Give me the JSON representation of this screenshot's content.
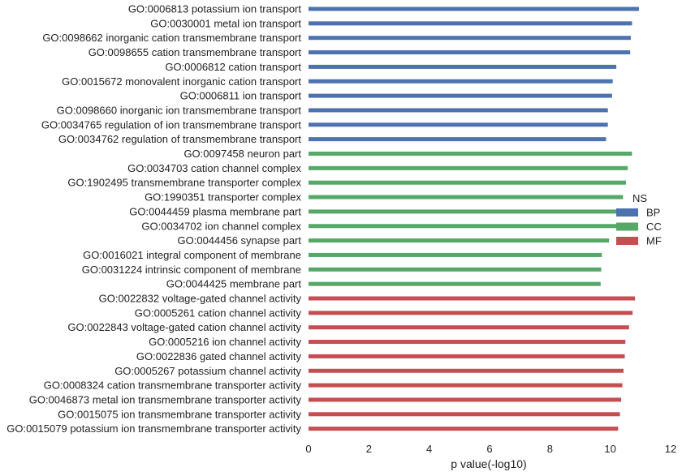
{
  "chart_data": {
    "type": "bar",
    "orientation": "horizontal",
    "xlabel": "p value(-log10)",
    "ylabel": "",
    "xlim": [
      0,
      12
    ],
    "xticks": [
      0,
      2,
      4,
      6,
      8,
      10,
      12
    ],
    "grid": false,
    "legend": {
      "title": "NS",
      "placement": "right",
      "entries": [
        {
          "name": "BP",
          "color": "#4c72b0"
        },
        {
          "name": "CC",
          "color": "#55a868"
        },
        {
          "name": "MF",
          "color": "#c44e52"
        }
      ]
    },
    "categories": [
      "GO:0006813 potassium ion transport",
      "GO:0030001 metal ion transport",
      "GO:0098662 inorganic cation transmembrane transport",
      "GO:0098655 cation transmembrane transport",
      "GO:0006812 cation transport",
      "GO:0015672 monovalent inorganic cation transport",
      "GO:0006811 ion transport",
      "GO:0098660 inorganic ion transmembrane transport",
      "GO:0034765 regulation of ion transmembrane transport",
      "GO:0034762 regulation of transmembrane transport",
      "GO:0097458 neuron part",
      "GO:0034703 cation channel complex",
      "GO:1902495 transmembrane transporter complex",
      "GO:1990351 transporter complex",
      "GO:0044459 plasma membrane part",
      "GO:0034702 ion channel complex",
      "GO:0044456 synapse part",
      "GO:0016021 integral component of membrane",
      "GO:0031224 intrinsic component of membrane",
      "GO:0044425 membrane part",
      "GO:0022832 voltage-gated channel activity",
      "GO:0005261 cation channel activity",
      "GO:0022843 voltage-gated cation channel activity",
      "GO:0005216 ion channel activity",
      "GO:0022836 gated channel activity",
      "GO:0005267 potassium channel activity",
      "GO:0008324 cation transmembrane transporter activity",
      "GO:0046873 metal ion transmembrane transporter activity",
      "GO:0015075 ion transmembrane transporter activity",
      "GO:0015079 potassium ion transmembrane transporter activity"
    ],
    "values": [
      10.95,
      10.72,
      10.68,
      10.66,
      10.2,
      10.08,
      10.06,
      9.92,
      9.92,
      9.86,
      10.72,
      10.58,
      10.52,
      10.42,
      10.3,
      10.24,
      9.96,
      9.72,
      9.7,
      9.68,
      10.82,
      10.74,
      10.62,
      10.5,
      10.48,
      10.44,
      10.4,
      10.36,
      10.32,
      10.26
    ],
    "groups": [
      "BP",
      "BP",
      "BP",
      "BP",
      "BP",
      "BP",
      "BP",
      "BP",
      "BP",
      "BP",
      "CC",
      "CC",
      "CC",
      "CC",
      "CC",
      "CC",
      "CC",
      "CC",
      "CC",
      "CC",
      "MF",
      "MF",
      "MF",
      "MF",
      "MF",
      "MF",
      "MF",
      "MF",
      "MF",
      "MF"
    ]
  }
}
